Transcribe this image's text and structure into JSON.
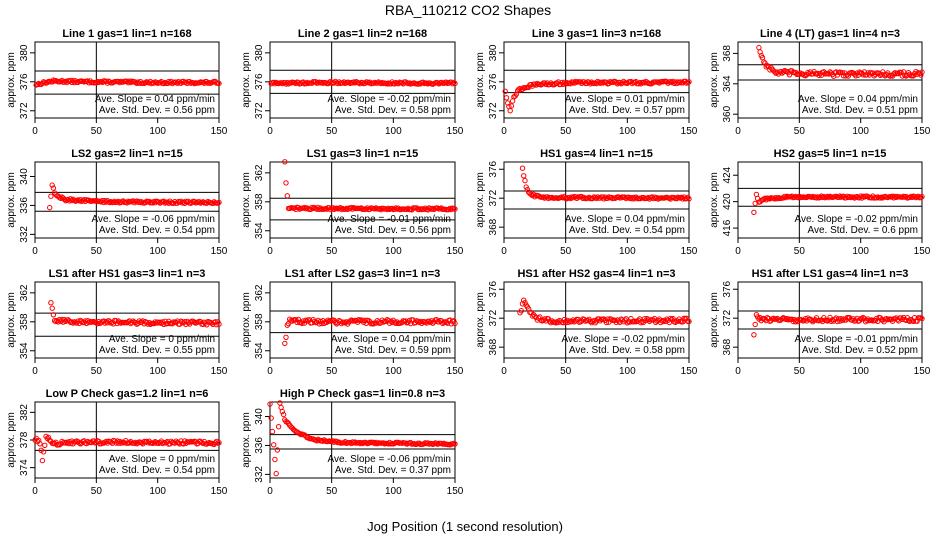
{
  "figure": {
    "title": "RBA_110212  CO2 Shapes",
    "xlabel": "Jog Position (1 second resolution)"
  },
  "colors": {
    "points": "#ff0000",
    "axes": "#000000",
    "background": "#ffffff"
  },
  "chart_data": [
    {
      "type": "scatter",
      "title": "Line 1 gas=1 lin=1 n=168",
      "ylabel": "approx. ppm",
      "xlim": [
        0,
        150
      ],
      "xticks": [
        0,
        50,
        100,
        150
      ],
      "ylim": [
        371,
        381.5
      ],
      "yticks": [
        372,
        376,
        380
      ],
      "hlines": [
        374.3,
        377.5
      ],
      "vline_x": 50,
      "slope_text": "Ave. Slope = 0.04 ppm/min",
      "std_text": "Ave. Std. Dev. = 0.56 ppm",
      "x_range": [
        1,
        150
      ],
      "series": [
        {
          "segments": [
            [
              0,
              375.6
            ],
            [
              8,
              375.9
            ],
            [
              15,
              376.1
            ],
            [
              40,
              376.0
            ],
            [
              100,
              375.9
            ],
            [
              150,
              375.9
            ]
          ],
          "noise": 0.15
        }
      ]
    },
    {
      "type": "scatter",
      "title": "Line 2 gas=1 lin=2 n=168",
      "ylabel": "approx. ppm",
      "xlim": [
        0,
        150
      ],
      "xticks": [
        0,
        50,
        100,
        150
      ],
      "ylim": [
        371,
        381.5
      ],
      "yticks": [
        372,
        376,
        380
      ],
      "hlines": [
        374.4,
        377.6
      ],
      "vline_x": 50,
      "slope_text": "Ave. Slope = -0.02 ppm/min",
      "std_text": "Ave. Std. Dev. = 0.58 ppm",
      "x_range": [
        1,
        150
      ],
      "series": [
        {
          "segments": [
            [
              0,
              375.8
            ],
            [
              50,
              375.9
            ],
            [
              150,
              375.8
            ]
          ],
          "noise": 0.15
        }
      ]
    },
    {
      "type": "scatter",
      "title": "Line 3 gas=1 lin=3 n=168",
      "ylabel": "approx. ppm",
      "xlim": [
        0,
        150
      ],
      "xticks": [
        0,
        50,
        100,
        150
      ],
      "ylim": [
        371,
        381.5
      ],
      "yticks": [
        372,
        376,
        380
      ],
      "hlines": [
        374.5,
        377.6
      ],
      "vline_x": 50,
      "slope_text": "Ave. Slope = 0.01 ppm/min",
      "std_text": "Ave. Std. Dev. = 0.57 ppm",
      "x_range": [
        1,
        150
      ],
      "series": [
        {
          "segments": [
            [
              0,
              375.5
            ],
            [
              3,
              373.2
            ],
            [
              5,
              372.0
            ],
            [
              8,
              373.9
            ],
            [
              12,
              374.9
            ],
            [
              20,
              375.4
            ],
            [
              30,
              375.7
            ],
            [
              60,
              375.9
            ],
            [
              150,
              375.9
            ]
          ],
          "noise": 0.18
        }
      ]
    },
    {
      "type": "scatter",
      "title": "Line 4 (LT) gas=1 lin=4 n=3",
      "ylabel": "approx. ppm",
      "xlim": [
        0,
        150
      ],
      "xticks": [
        0,
        50,
        100,
        150
      ],
      "ylim": [
        359.5,
        369.5
      ],
      "yticks": [
        360,
        364,
        368
      ],
      "hlines": [
        364.5,
        366.5
      ],
      "vline_x": 50,
      "slope_text": "Ave. Slope = 0.04 ppm/min",
      "std_text": "Ave. Std. Dev. = 0.51 ppm",
      "x_range": [
        17,
        150
      ],
      "series": [
        {
          "segments": [
            [
              17,
              368.8
            ],
            [
              19,
              367.8
            ],
            [
              22,
              366.6
            ],
            [
              30,
              365.5
            ],
            [
              60,
              365.3
            ],
            [
              150,
              365.3
            ]
          ],
          "noise": 0.3
        }
      ]
    },
    {
      "type": "scatter",
      "title": "LS2 gas=2 lin=1 n=15",
      "ylabel": "approx. ppm",
      "xlim": [
        0,
        150
      ],
      "xticks": [
        0,
        50,
        100,
        150
      ],
      "ylim": [
        331.5,
        342
      ],
      "yticks": [
        332,
        336,
        340
      ],
      "hlines": [
        335.2,
        337.8
      ],
      "vline_x": 50,
      "slope_text": "Ave. Slope = -0.06 ppm/min",
      "std_text": "Ave. Std. Dev. = 0.54 ppm",
      "x_range": [
        12,
        150
      ],
      "series": [
        {
          "segments": [
            [
              12,
              335.7
            ],
            [
              14,
              338.8
            ],
            [
              17,
              337.4
            ],
            [
              25,
              336.8
            ],
            [
              60,
              336.5
            ],
            [
              150,
              336.4
            ]
          ],
          "noise": 0.15
        }
      ]
    },
    {
      "type": "scatter",
      "title": "LS1 gas=3 lin=1 n=15",
      "ylabel": "approx. ppm",
      "xlim": [
        0,
        150
      ],
      "xticks": [
        0,
        50,
        100,
        150
      ],
      "ylim": [
        353,
        363.5
      ],
      "yticks": [
        354,
        358,
        362
      ],
      "hlines": [
        355.5,
        358.5
      ],
      "vline_x": 50,
      "slope_text": "Ave. Slope = -0.01 ppm/min",
      "std_text": "Ave. Std. Dev. = 0.56 ppm",
      "x_range": [
        12,
        150
      ],
      "series": [
        {
          "segments": [
            [
              12,
              363.5
            ],
            [
              13,
              360.5
            ],
            [
              15,
              357.0
            ],
            [
              20,
              357.1
            ],
            [
              150,
              357.0
            ]
          ],
          "noise": 0.15
        }
      ]
    },
    {
      "type": "scatter",
      "title": "HS1 gas=4 lin=1 n=15",
      "ylabel": "approx. ppm",
      "xlim": [
        0,
        150
      ],
      "xticks": [
        0,
        50,
        100,
        150
      ],
      "ylim": [
        366.5,
        377
      ],
      "yticks": [
        368,
        372,
        376
      ],
      "hlines": [
        370.5,
        373.0
      ],
      "vline_x": 50,
      "slope_text": "Ave. Slope = 0.04 ppm/min",
      "std_text": "Ave. Std. Dev. = 0.54 ppm",
      "x_range": [
        15,
        150
      ],
      "series": [
        {
          "segments": [
            [
              15,
              376.1
            ],
            [
              18,
              373.4
            ],
            [
              22,
              372.5
            ],
            [
              30,
              372.1
            ],
            [
              150,
              372.0
            ]
          ],
          "noise": 0.15
        }
      ]
    },
    {
      "type": "scatter",
      "title": "HS2 gas=5 lin=1 n=15",
      "ylabel": "approx. ppm",
      "xlim": [
        0,
        150
      ],
      "xticks": [
        0,
        50,
        100,
        150
      ],
      "ylim": [
        414.5,
        426
      ],
      "yticks": [
        416,
        420,
        424
      ],
      "hlines": [
        419.3,
        422.0
      ],
      "vline_x": 50,
      "slope_text": "Ave. Slope = -0.02 ppm/min",
      "std_text": "Ave. Std. Dev. = 0.6 ppm",
      "x_range": [
        13,
        150
      ],
      "series": [
        {
          "segments": [
            [
              13,
              418.3
            ],
            [
              15,
              421.2
            ],
            [
              17,
              420.0
            ],
            [
              22,
              420.4
            ],
            [
              40,
              420.7
            ],
            [
              150,
              420.7
            ]
          ],
          "noise": 0.15
        }
      ]
    },
    {
      "type": "scatter",
      "title": "LS1 after HS1 gas=3 lin=1 n=3",
      "ylabel": "approx. ppm",
      "xlim": [
        0,
        150
      ],
      "xticks": [
        0,
        50,
        100,
        150
      ],
      "ylim": [
        353,
        363.5
      ],
      "yticks": [
        354,
        358,
        362
      ],
      "hlines": [
        356.0,
        359.2
      ],
      "vline_x": 50,
      "slope_text": "Ave. Slope = 0 ppm/min",
      "std_text": "Ave. Std. Dev. = 0.55 ppm",
      "x_range": [
        13,
        150
      ],
      "series": [
        {
          "segments": [
            [
              13,
              360.5
            ],
            [
              16,
              358.3
            ],
            [
              30,
              358.0
            ],
            [
              150,
              357.8
            ]
          ],
          "noise": 0.25
        }
      ]
    },
    {
      "type": "scatter",
      "title": "LS1 after LS2 gas=3 lin=1 n=3",
      "ylabel": "approx. ppm",
      "xlim": [
        0,
        150
      ],
      "xticks": [
        0,
        50,
        100,
        150
      ],
      "ylim": [
        353,
        363.5
      ],
      "yticks": [
        354,
        358,
        362
      ],
      "hlines": [
        356.5,
        359.5
      ],
      "vline_x": 50,
      "slope_text": "Ave. Slope = 0.04 ppm/min",
      "std_text": "Ave. Std. Dev. = 0.59 ppm",
      "x_range": [
        12,
        150
      ],
      "series": [
        {
          "segments": [
            [
              12,
              354.8
            ],
            [
              14,
              357.5
            ],
            [
              16,
              358.2
            ],
            [
              30,
              358.0
            ],
            [
              150,
              358.0
            ]
          ],
          "noise": 0.3
        }
      ]
    },
    {
      "type": "scatter",
      "title": "HS1 after HS2 gas=4 lin=1 n=3",
      "ylabel": "approx. ppm",
      "xlim": [
        0,
        150
      ],
      "xticks": [
        0,
        50,
        100,
        150
      ],
      "ylim": [
        366.5,
        377
      ],
      "yticks": [
        368,
        372,
        376
      ],
      "hlines": [
        370.5,
        373.0
      ],
      "vline_x": 50,
      "slope_text": "Ave. Slope = -0.02 ppm/min",
      "std_text": "Ave. Std. Dev. = 0.58 ppm",
      "x_range": [
        13,
        150
      ],
      "series": [
        {
          "segments": [
            [
              13,
              372.5
            ],
            [
              16,
              374.5
            ],
            [
              19,
              373.4
            ],
            [
              25,
              372.0
            ],
            [
              40,
              371.6
            ],
            [
              150,
              371.7
            ]
          ],
          "noise": 0.3
        }
      ]
    },
    {
      "type": "scatter",
      "title": "HS1 after LS1 gas=4 lin=1 n=3",
      "ylabel": "approx. ppm",
      "xlim": [
        0,
        150
      ],
      "xticks": [
        0,
        50,
        100,
        150
      ],
      "ylim": [
        366.5,
        377
      ],
      "yticks": [
        368,
        372,
        376
      ],
      "hlines": [
        370.5,
        373.0
      ],
      "vline_x": 50,
      "slope_text": "Ave. Slope = -0.01 ppm/min",
      "std_text": "Ave. Std. Dev. = 0.52 ppm",
      "x_range": [
        13,
        150
      ],
      "series": [
        {
          "segments": [
            [
              13,
              370.0
            ],
            [
              15,
              372.2
            ],
            [
              20,
              371.8
            ],
            [
              150,
              371.8
            ]
          ],
          "noise": 0.3
        }
      ]
    },
    {
      "type": "scatter",
      "title": "Low P Check gas=1.2 lin=1 n=6",
      "ylabel": "approx. ppm",
      "xlim": [
        0,
        150
      ],
      "xticks": [
        0,
        50,
        100,
        150
      ],
      "ylim": [
        372.5,
        383.5
      ],
      "yticks": [
        374,
        378,
        382
      ],
      "hlines": [
        376.5,
        379.2
      ],
      "vline_x": 50,
      "slope_text": "Ave. Slope = 0 ppm/min",
      "std_text": "Ave. Std. Dev. = 0.54 ppm",
      "x_range": [
        0,
        150
      ],
      "series": [
        {
          "segments": [
            [
              0,
              378.2
            ],
            [
              4,
              377.7
            ],
            [
              6,
              375.0
            ],
            [
              9,
              378.5
            ],
            [
              15,
              377.4
            ],
            [
              30,
              377.7
            ],
            [
              150,
              377.6
            ]
          ],
          "noise": 0.25
        }
      ]
    },
    {
      "type": "scatter",
      "title": "High P Check gas=1 lin=0.8 n=3",
      "ylabel": "approx. ppm",
      "xlim": [
        0,
        150
      ],
      "xticks": [
        0,
        50,
        100,
        150
      ],
      "ylim": [
        331.5,
        342
      ],
      "yticks": [
        332,
        336,
        340
      ],
      "hlines": [
        335.5,
        337.5
      ],
      "vline_x": 50,
      "slope_text": "Ave. Slope = -0.06 ppm/min",
      "std_text": "Ave. Std. Dev. = 0.37 ppm",
      "x_range": [
        0,
        150
      ],
      "series": [
        {
          "segments": [
            [
              0,
              341.8
            ],
            [
              3,
              336.0
            ],
            [
              5,
              332.0
            ],
            [
              8,
              341.8
            ],
            [
              12,
              339.6
            ],
            [
              20,
              338.0
            ],
            [
              35,
              336.8
            ],
            [
              60,
              336.4
            ],
            [
              150,
              336.2
            ]
          ],
          "noise": 0.12
        }
      ]
    }
  ]
}
